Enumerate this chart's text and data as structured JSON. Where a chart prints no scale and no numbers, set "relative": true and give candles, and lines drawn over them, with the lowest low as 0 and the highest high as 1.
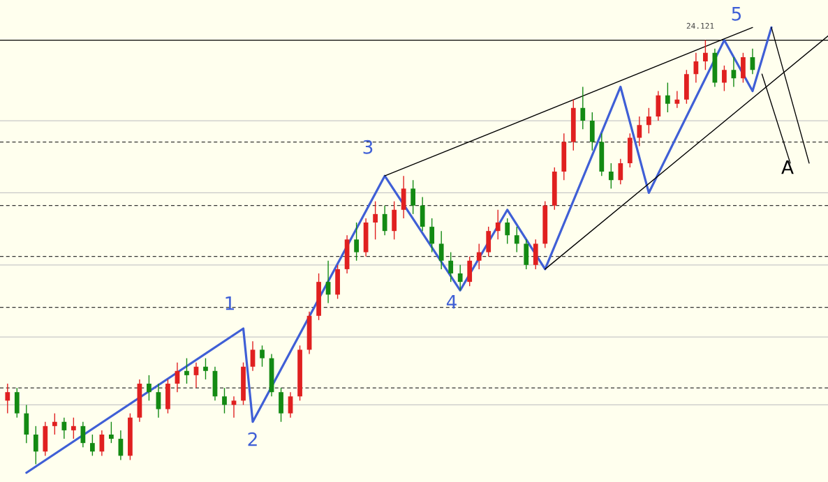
{
  "chart_data": {
    "type": "candlestick",
    "relative": true,
    "categories": [
      null,
      null,
      null,
      null,
      null,
      null,
      null,
      null,
      null,
      null,
      null,
      null,
      null,
      null,
      null,
      null,
      null,
      null,
      null,
      null,
      null,
      null,
      null,
      null,
      null,
      null,
      null,
      null,
      null,
      null,
      null,
      null,
      null,
      null,
      null,
      null,
      null,
      null,
      null,
      null,
      null,
      null,
      null,
      null,
      null,
      null,
      null,
      null,
      null,
      null,
      null,
      null,
      null,
      null,
      null,
      null,
      null,
      null,
      null,
      null,
      null,
      null,
      null,
      null,
      null,
      null,
      null,
      null,
      null,
      null,
      null,
      null,
      null,
      null,
      null,
      null,
      null,
      null,
      null,
      null,
      null,
      null,
      null,
      null,
      null,
      null,
      null,
      null
    ],
    "ohlc": [
      [
        0.15,
        0.19,
        0.12,
        0.17
      ],
      [
        0.17,
        0.18,
        0.11,
        0.12
      ],
      [
        0.12,
        0.14,
        0.05,
        0.07
      ],
      [
        0.07,
        0.09,
        0,
        0.03
      ],
      [
        0.03,
        0.1,
        0.02,
        0.09
      ],
      [
        0.09,
        0.12,
        0.07,
        0.1
      ],
      [
        0.1,
        0.11,
        0.06,
        0.08
      ],
      [
        0.08,
        0.11,
        0.06,
        0.09
      ],
      [
        0.09,
        0.1,
        0.04,
        0.05
      ],
      [
        0.05,
        0.07,
        0.02,
        0.03
      ],
      [
        0.03,
        0.08,
        0.02,
        0.07
      ],
      [
        0.07,
        0.1,
        0.05,
        0.06
      ],
      [
        0.06,
        0.08,
        0.01,
        0.02
      ],
      [
        0.02,
        0.12,
        0.01,
        0.11
      ],
      [
        0.11,
        0.2,
        0.1,
        0.19
      ],
      [
        0.19,
        0.21,
        0.15,
        0.17
      ],
      [
        0.17,
        0.19,
        0.11,
        0.13
      ],
      [
        0.13,
        0.2,
        0.12,
        0.19
      ],
      [
        0.19,
        0.24,
        0.17,
        0.22
      ],
      [
        0.22,
        0.25,
        0.19,
        0.21
      ],
      [
        0.21,
        0.24,
        0.18,
        0.23
      ],
      [
        0.23,
        0.25,
        0.2,
        0.22
      ],
      [
        0.22,
        0.23,
        0.15,
        0.16
      ],
      [
        0.16,
        0.18,
        0.12,
        0.14
      ],
      [
        0.14,
        0.16,
        0.11,
        0.15
      ],
      [
        0.15,
        0.24,
        0.14,
        0.23
      ],
      [
        0.23,
        0.29,
        0.22,
        0.27
      ],
      [
        0.27,
        0.28,
        0.23,
        0.25
      ],
      [
        0.25,
        0.26,
        0.16,
        0.17
      ],
      [
        0.17,
        0.18,
        0.1,
        0.12
      ],
      [
        0.12,
        0.17,
        0.11,
        0.16
      ],
      [
        0.16,
        0.28,
        0.15,
        0.27
      ],
      [
        0.27,
        0.36,
        0.26,
        0.35
      ],
      [
        0.35,
        0.45,
        0.34,
        0.43
      ],
      [
        0.43,
        0.48,
        0.38,
        0.4
      ],
      [
        0.4,
        0.47,
        0.39,
        0.46
      ],
      [
        0.46,
        0.54,
        0.45,
        0.53
      ],
      [
        0.53,
        0.57,
        0.48,
        0.5
      ],
      [
        0.5,
        0.58,
        0.49,
        0.57
      ],
      [
        0.57,
        0.62,
        0.53,
        0.59
      ],
      [
        0.59,
        0.61,
        0.54,
        0.55
      ],
      [
        0.55,
        0.62,
        0.53,
        0.6
      ],
      [
        0.6,
        0.68,
        0.58,
        0.65
      ],
      [
        0.65,
        0.67,
        0.59,
        0.61
      ],
      [
        0.61,
        0.63,
        0.55,
        0.56
      ],
      [
        0.56,
        0.58,
        0.5,
        0.52
      ],
      [
        0.52,
        0.55,
        0.46,
        0.48
      ],
      [
        0.48,
        0.5,
        0.43,
        0.45
      ],
      [
        0.45,
        0.47,
        0.41,
        0.43
      ],
      [
        0.43,
        0.49,
        0.42,
        0.48
      ],
      [
        0.48,
        0.52,
        0.46,
        0.5
      ],
      [
        0.5,
        0.56,
        0.49,
        0.55
      ],
      [
        0.55,
        0.6,
        0.53,
        0.57
      ],
      [
        0.57,
        0.58,
        0.52,
        0.54
      ],
      [
        0.54,
        0.56,
        0.5,
        0.52
      ],
      [
        0.52,
        0.53,
        0.46,
        0.47
      ],
      [
        0.47,
        0.53,
        0.46,
        0.52
      ],
      [
        0.52,
        0.62,
        0.51,
        0.61
      ],
      [
        0.61,
        0.7,
        0.6,
        0.69
      ],
      [
        0.69,
        0.78,
        0.67,
        0.76
      ],
      [
        0.76,
        0.86,
        0.74,
        0.84
      ],
      [
        0.84,
        0.89,
        0.79,
        0.81
      ],
      [
        0.81,
        0.83,
        0.74,
        0.76
      ],
      [
        0.76,
        0.78,
        0.68,
        0.69
      ],
      [
        0.69,
        0.71,
        0.65,
        0.67
      ],
      [
        0.67,
        0.72,
        0.66,
        0.71
      ],
      [
        0.71,
        0.78,
        0.7,
        0.77
      ],
      [
        0.77,
        0.82,
        0.75,
        0.8
      ],
      [
        0.8,
        0.84,
        0.78,
        0.82
      ],
      [
        0.82,
        0.88,
        0.81,
        0.87
      ],
      [
        0.87,
        0.9,
        0.83,
        0.85
      ],
      [
        0.85,
        0.88,
        0.84,
        0.86
      ],
      [
        0.86,
        0.93,
        0.85,
        0.92
      ],
      [
        0.92,
        0.97,
        0.9,
        0.95
      ],
      [
        0.95,
        1,
        0.93,
        0.97
      ],
      [
        0.97,
        0.98,
        0.89,
        0.9
      ],
      [
        0.9,
        0.94,
        0.88,
        0.93
      ],
      [
        0.93,
        0.96,
        0.89,
        0.91
      ],
      [
        0.91,
        0.97,
        0.9,
        0.96
      ],
      [
        0.96,
        0.98,
        0.92,
        0.93
      ],
      null,
      null,
      null,
      null,
      null,
      null,
      null,
      null
    ],
    "series": [
      {
        "type": "line",
        "color": "#3f5fd6",
        "values": [
          null,
          null,
          -0.02,
          null,
          null,
          null,
          null,
          null,
          null,
          null,
          null,
          null,
          null,
          null,
          null,
          null,
          null,
          null,
          null,
          null,
          null,
          null,
          null,
          null,
          null,
          0.32,
          0.1,
          null,
          null,
          null,
          null,
          null,
          null,
          null,
          null,
          null,
          null,
          null,
          null,
          null,
          0.68,
          null,
          null,
          null,
          null,
          null,
          null,
          null,
          0.41,
          null,
          null,
          null,
          null,
          0.6,
          null,
          null,
          null,
          0.46,
          null,
          null,
          null,
          null,
          null,
          null,
          null,
          0.89,
          null,
          null,
          0.64,
          null,
          null,
          null,
          null,
          null,
          null,
          null,
          1.0,
          null,
          null,
          0.88,
          null,
          1.03,
          null,
          null,
          null,
          null,
          null,
          null
        ]
      },
      {
        "type": "line",
        "color": "#000000",
        "values": [
          null,
          null,
          null,
          null,
          null,
          null,
          null,
          null,
          null,
          null,
          null,
          null,
          null,
          null,
          null,
          null,
          null,
          null,
          null,
          null,
          null,
          null,
          null,
          null,
          null,
          null,
          null,
          null,
          null,
          null,
          null,
          null,
          null,
          null,
          null,
          null,
          null,
          null,
          null,
          null,
          0.68,
          null,
          null,
          null,
          null,
          null,
          null,
          null,
          null,
          null,
          null,
          null,
          null,
          null,
          null,
          null,
          null,
          null,
          null,
          null,
          null,
          null,
          null,
          null,
          null,
          null,
          null,
          null,
          null,
          null,
          null,
          null,
          null,
          null,
          null,
          null,
          null,
          null,
          null,
          1.03,
          null,
          null,
          null,
          null,
          null,
          null,
          null,
          null
        ]
      },
      {
        "type": "line",
        "color": "#000000",
        "values": [
          null,
          null,
          null,
          null,
          null,
          null,
          null,
          null,
          null,
          null,
          null,
          null,
          null,
          null,
          null,
          null,
          null,
          null,
          null,
          null,
          null,
          null,
          null,
          null,
          null,
          null,
          null,
          null,
          null,
          null,
          null,
          null,
          null,
          null,
          null,
          null,
          null,
          null,
          null,
          null,
          null,
          null,
          null,
          null,
          null,
          null,
          null,
          null,
          null,
          null,
          null,
          null,
          null,
          null,
          null,
          null,
          null,
          0.46,
          null,
          null,
          null,
          null,
          null,
          null,
          null,
          null,
          null,
          null,
          null,
          null,
          null,
          null,
          null,
          null,
          null,
          null,
          null,
          null,
          null,
          null,
          null,
          null,
          null,
          null,
          null,
          null,
          null,
          1.01
        ]
      },
      {
        "type": "line",
        "color": "#000000",
        "values": [
          null,
          null,
          null,
          null,
          null,
          null,
          null,
          null,
          null,
          null,
          null,
          null,
          null,
          null,
          null,
          null,
          null,
          null,
          null,
          null,
          null,
          null,
          null,
          null,
          null,
          null,
          null,
          null,
          null,
          null,
          null,
          null,
          null,
          null,
          null,
          null,
          null,
          null,
          null,
          null,
          null,
          null,
          null,
          null,
          null,
          null,
          null,
          null,
          null,
          null,
          null,
          null,
          null,
          null,
          null,
          null,
          null,
          null,
          null,
          null,
          null,
          null,
          null,
          null,
          null,
          null,
          null,
          null,
          null,
          null,
          null,
          null,
          null,
          null,
          null,
          null,
          null,
          null,
          null,
          null,
          0.92,
          null,
          null,
          0.71,
          null,
          null,
          null,
          null
        ]
      },
      {
        "type": "line",
        "color": "#000000",
        "values": [
          null,
          null,
          null,
          null,
          null,
          null,
          null,
          null,
          null,
          null,
          null,
          null,
          null,
          null,
          null,
          null,
          null,
          null,
          null,
          null,
          null,
          null,
          null,
          null,
          null,
          null,
          null,
          null,
          null,
          null,
          null,
          null,
          null,
          null,
          null,
          null,
          null,
          null,
          null,
          null,
          null,
          null,
          null,
          null,
          null,
          null,
          null,
          null,
          null,
          null,
          null,
          null,
          null,
          null,
          null,
          null,
          null,
          null,
          null,
          null,
          null,
          null,
          null,
          null,
          null,
          null,
          null,
          null,
          null,
          null,
          null,
          null,
          null,
          null,
          null,
          null,
          null,
          null,
          null,
          null,
          null,
          1.03,
          null,
          null,
          null,
          0.71,
          null,
          null
        ]
      }
    ],
    "ref_lines": [
      {
        "axis": "y",
        "value": 1,
        "color": "#000000",
        "line_style": "solid"
      },
      {
        "axis": "y",
        "value": 0.76,
        "color": "#333333",
        "line_style": "dashed"
      },
      {
        "axis": "y",
        "value": 0.61,
        "color": "#333333",
        "line_style": "dashed"
      },
      {
        "axis": "y",
        "value": 0.49,
        "color": "#333333",
        "line_style": "dashed"
      },
      {
        "axis": "y",
        "value": 0.37,
        "color": "#333333",
        "line_style": "dashed"
      },
      {
        "axis": "y",
        "value": 0.18,
        "color": "#333333",
        "line_style": "dashed"
      },
      {
        "axis": "y",
        "value": 0.81,
        "color": "#c8c8c8",
        "line_style": "solid"
      },
      {
        "axis": "y",
        "value": 0.64,
        "color": "#c8c8c8",
        "line_style": "solid"
      },
      {
        "axis": "y",
        "value": 0.47,
        "color": "#c8c8c8",
        "line_style": "solid"
      },
      {
        "axis": "y",
        "value": 0.3,
        "color": "#c8c8c8",
        "line_style": "solid"
      },
      {
        "axis": "y",
        "value": 0.14,
        "color": "#c8c8c8",
        "line_style": "solid"
      }
    ],
    "annotations": [
      "1",
      "2",
      "3",
      "4",
      "5",
      "A",
      "24.121"
    ]
  }
}
